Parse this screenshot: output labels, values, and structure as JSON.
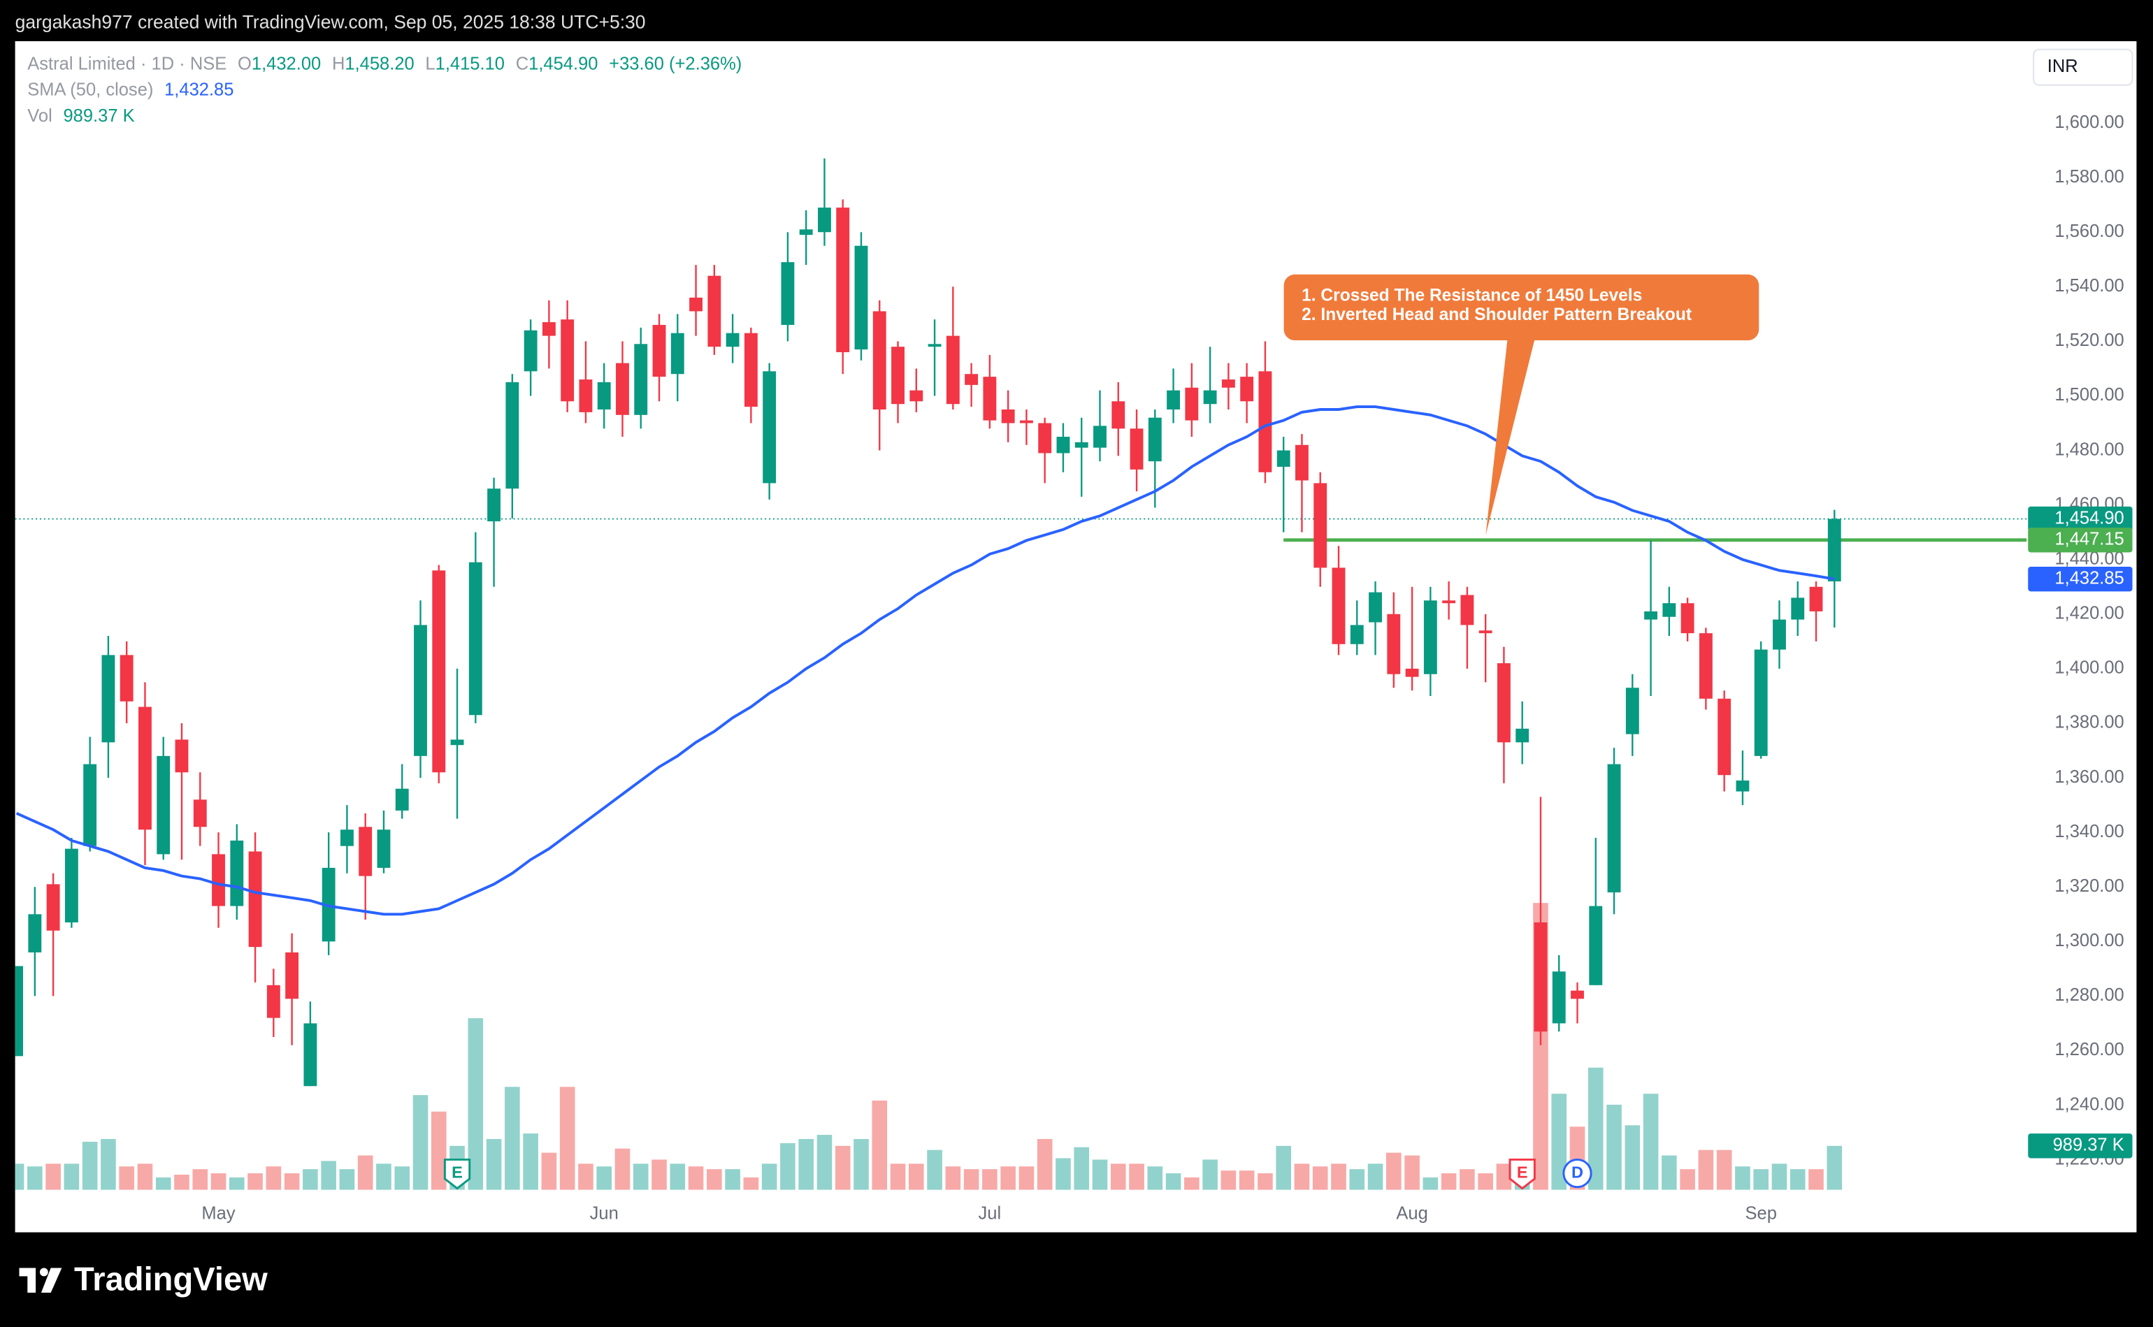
{
  "credit": "gargakash977 created with TradingView.com, Sep 05, 2025 18:38 UTC+5:30",
  "brand": "TradingView",
  "chart_data": {
    "type": "candlestick",
    "currency": "INR",
    "legend": {
      "symbol": "Astral Limited · 1D · NSE",
      "items": [
        {
          "key": "O",
          "value": "1,432.00"
        },
        {
          "key": "H",
          "value": "1,458.20"
        },
        {
          "key": "L",
          "value": "1,415.10"
        },
        {
          "key": "C",
          "value": "1,454.90"
        }
      ],
      "change": "+33.60 (+2.36%)",
      "sma_value": "1,432.85"
    },
    "categories": [
      null,
      null,
      null,
      null,
      null,
      null,
      null,
      null,
      null,
      null,
      null,
      "May",
      null,
      null,
      null,
      null,
      null,
      null,
      null,
      null,
      null,
      null,
      null,
      null,
      null,
      null,
      null,
      null,
      null,
      null,
      null,
      null,
      "Jun",
      null,
      null,
      null,
      null,
      null,
      null,
      null,
      null,
      null,
      null,
      null,
      null,
      null,
      null,
      null,
      null,
      null,
      null,
      null,
      null,
      "Jul",
      null,
      null,
      null,
      null,
      null,
      null,
      null,
      null,
      null,
      null,
      null,
      null,
      null,
      null,
      null,
      null,
      null,
      null,
      null,
      null,
      null,
      null,
      "Aug",
      null,
      null,
      null,
      null,
      null,
      null,
      null,
      null,
      null,
      null,
      null,
      null,
      null,
      null,
      null,
      null,
      null,
      null,
      "Sep",
      null,
      null,
      null,
      null
    ],
    "open": [
      1258,
      1296,
      1321,
      1307,
      1335,
      1373,
      1405,
      1386,
      1332,
      1374,
      1352,
      1332,
      1313,
      1333,
      1284,
      1296,
      1247,
      1300,
      1335,
      1342,
      1327,
      1348,
      1368,
      1436,
      1372,
      1383,
      1454,
      1466,
      1509,
      1527,
      1528,
      1506,
      1495,
      1512,
      1493,
      1526,
      1508,
      1536,
      1544,
      1518,
      1523,
      1468,
      1526,
      1559,
      1560,
      1569,
      1517,
      1531,
      1518,
      1502,
      1518,
      1522,
      1508,
      1507,
      1495,
      1491,
      1490,
      1479,
      1481,
      1481,
      1498,
      1488,
      1476,
      1495,
      1503,
      1497,
      1506,
      1507,
      1509,
      1474,
      1482,
      1468,
      1437,
      1409,
      1417,
      1420,
      1400,
      1398,
      1425,
      1427,
      1414,
      1402,
      1373,
      1307,
      1270,
      1282,
      1284,
      1318,
      1376,
      1418,
      1419,
      1424,
      1413,
      1389,
      1355,
      1368,
      1407,
      1418,
      1430,
      1432
    ],
    "high": [
      1291,
      1320,
      1325,
      1338,
      1375,
      1412,
      1410,
      1395,
      1375,
      1380,
      1362,
      1340,
      1343,
      1340,
      1290,
      1303,
      1278,
      1340,
      1350,
      1347,
      1348,
      1365,
      1425,
      1438,
      1400,
      1450,
      1470,
      1508,
      1528,
      1535,
      1535,
      1520,
      1512,
      1520,
      1525,
      1530,
      1530,
      1548,
      1548,
      1530,
      1525,
      1512,
      1560,
      1568,
      1587,
      1572,
      1560,
      1535,
      1520,
      1510,
      1528,
      1540,
      1512,
      1515,
      1502,
      1495,
      1492,
      1490,
      1492,
      1502,
      1505,
      1495,
      1495,
      1510,
      1512,
      1518,
      1512,
      1512,
      1520,
      1485,
      1486,
      1472,
      1445,
      1425,
      1432,
      1428,
      1430,
      1430,
      1432,
      1430,
      1420,
      1408,
      1388,
      1353,
      1295,
      1285,
      1338,
      1371,
      1398,
      1447,
      1430,
      1426,
      1415,
      1392,
      1370,
      1410,
      1425,
      1432,
      1432,
      1458.2
    ],
    "low": [
      1258,
      1280,
      1280,
      1305,
      1333,
      1360,
      1380,
      1328,
      1330,
      1330,
      1335,
      1305,
      1308,
      1285,
      1265,
      1262,
      1247,
      1295,
      1325,
      1308,
      1325,
      1345,
      1360,
      1358,
      1345,
      1380,
      1430,
      1455,
      1500,
      1510,
      1494,
      1490,
      1488,
      1485,
      1488,
      1498,
      1498,
      1522,
      1515,
      1512,
      1490,
      1462,
      1520,
      1548,
      1555,
      1508,
      1513,
      1480,
      1490,
      1494,
      1500,
      1495,
      1496,
      1488,
      1483,
      1482,
      1468,
      1472,
      1463,
      1476,
      1478,
      1465,
      1459,
      1490,
      1485,
      1490,
      1495,
      1490,
      1468,
      1450,
      1450,
      1430,
      1405,
      1405,
      1405,
      1393,
      1392,
      1390,
      1418,
      1400,
      1395,
      1358,
      1365,
      1262,
      1267,
      1270,
      1284,
      1310,
      1368,
      1390,
      1412,
      1410,
      1385,
      1355,
      1350,
      1367,
      1400,
      1412,
      1410,
      1415.1
    ],
    "close": [
      1291,
      1310,
      1304,
      1334,
      1365,
      1405,
      1388,
      1341,
      1368,
      1362,
      1342,
      1313,
      1337,
      1298,
      1272,
      1279,
      1270,
      1327,
      1341,
      1324,
      1341,
      1356,
      1416,
      1362,
      1374,
      1439,
      1466,
      1505,
      1524,
      1522,
      1498,
      1494,
      1505,
      1493,
      1519,
      1507,
      1523,
      1531,
      1518,
      1523,
      1496,
      1509,
      1549,
      1561,
      1569,
      1516,
      1555,
      1495,
      1497,
      1498,
      1519,
      1497,
      1504,
      1491,
      1490,
      1490,
      1479,
      1485,
      1483,
      1489,
      1488,
      1473,
      1492,
      1502,
      1491,
      1502,
      1503,
      1498,
      1472,
      1480,
      1469,
      1437,
      1409,
      1416,
      1428,
      1398,
      1397,
      1425,
      1424,
      1416,
      1413,
      1373,
      1378,
      1267,
      1289,
      1279,
      1313,
      1365,
      1393,
      1421,
      1424,
      1413,
      1389,
      1361,
      1359,
      1407,
      1418,
      1426,
      1421,
      1454.9
    ],
    "up_color": "#089981",
    "down_color": "#f23645",
    "volume": {
      "name": "Vol",
      "last_label": "989.37 K",
      "up_color": "#92d2cc",
      "down_color": "#f7a9a7",
      "values": [
        587,
        526,
        587,
        587,
        1082,
        1144,
        526,
        587,
        278,
        340,
        464,
        371,
        278,
        371,
        526,
        371,
        464,
        649,
        464,
        773,
        587,
        526,
        2133,
        1762,
        989,
        3865,
        1144,
        2319,
        1268,
        835,
        2319,
        587,
        526,
        928,
        587,
        680,
        587,
        526,
        464,
        464,
        278,
        587,
        1051,
        1144,
        1237,
        989,
        1144,
        2010,
        587,
        587,
        897,
        526,
        464,
        464,
        526,
        526,
        1144,
        711,
        959,
        680,
        587,
        587,
        526,
        371,
        278,
        680,
        433,
        433,
        371,
        989,
        587,
        526,
        587,
        464,
        587,
        835,
        773,
        278,
        371,
        464,
        371,
        587,
        680,
        6462,
        2164,
        1422,
        2752,
        1917,
        1453,
        2164,
        773,
        464,
        897,
        897,
        526,
        464,
        587,
        464,
        464,
        989.37
      ]
    },
    "sma": {
      "name": "SMA (50, close)",
      "color": "#2962ff",
      "values": [
        1347,
        1344,
        1341,
        1337,
        1335,
        1333,
        1330,
        1327,
        1326,
        1324,
        1323,
        1321,
        1320,
        1318,
        1317,
        1316,
        1315,
        1313,
        1312,
        1311,
        1310,
        1310,
        1311,
        1312,
        1315,
        1318,
        1321,
        1325,
        1330,
        1334,
        1339,
        1344,
        1349,
        1354,
        1359,
        1364,
        1368,
        1373,
        1377,
        1382,
        1386,
        1391,
        1395,
        1400,
        1404,
        1409,
        1413,
        1418,
        1422,
        1427,
        1431,
        1435,
        1438,
        1442,
        1444,
        1447,
        1449,
        1451,
        1454,
        1456,
        1459,
        1462,
        1465,
        1469,
        1474,
        1478,
        1482,
        1485,
        1489,
        1491,
        1494,
        1495,
        1495,
        1496,
        1496,
        1495,
        1494,
        1493,
        1491,
        1489,
        1486,
        1482,
        1478,
        1476,
        1472,
        1467,
        1463,
        1461,
        1458,
        1456,
        1454,
        1450,
        1447,
        1443,
        1440,
        1438,
        1436,
        1435,
        1434,
        1432.85
      ]
    },
    "resistance": {
      "value": 1447.15,
      "color": "#4caf50"
    },
    "price_badges": [
      {
        "value": 1454.9,
        "label": "1,454.90",
        "color": "#089981"
      },
      {
        "value": 1447.15,
        "label": "1,447.15",
        "color": "#4caf50"
      },
      {
        "value": 1432.85,
        "label": "1,432.85",
        "color": "#2962ff"
      }
    ],
    "events": [
      {
        "label": "E",
        "index": 24,
        "color": "#089981"
      },
      {
        "label": "E",
        "index": 82,
        "color": "#f23645"
      },
      {
        "label": "D",
        "index": 85,
        "color": "#2962ff"
      }
    ],
    "annotation": {
      "lines": [
        "1. Crossed The Resistance of 1450 Levels",
        "2. Inverted Head and Shoulder Pattern Breakout"
      ],
      "color": "#f07a3a"
    },
    "ylim": [
      1209,
      1630
    ],
    "yticks": [
      {
        "value": 1220,
        "label": "1,220.00"
      },
      {
        "value": 1240,
        "label": "1,240.00"
      },
      {
        "value": 1260,
        "label": "1,260.00"
      },
      {
        "value": 1280,
        "label": "1,280.00"
      },
      {
        "value": 1300,
        "label": "1,300.00"
      },
      {
        "value": 1320,
        "label": "1,320.00"
      },
      {
        "value": 1340,
        "label": "1,340.00"
      },
      {
        "value": 1360,
        "label": "1,360.00"
      },
      {
        "value": 1380,
        "label": "1,380.00"
      },
      {
        "value": 1400,
        "label": "1,400.00"
      },
      {
        "value": 1420,
        "label": "1,420.00"
      },
      {
        "value": 1440,
        "label": "1,440.00"
      },
      {
        "value": 1460,
        "label": "1,460.00"
      },
      {
        "value": 1480,
        "label": "1,480.00"
      },
      {
        "value": 1500,
        "label": "1,500.00"
      },
      {
        "value": 1520,
        "label": "1,520.00"
      },
      {
        "value": 1540,
        "label": "1,540.00"
      },
      {
        "value": 1560,
        "label": "1,560.00"
      },
      {
        "value": 1580,
        "label": "1,580.00"
      },
      {
        "value": 1600,
        "label": "1,600.00"
      }
    ],
    "grid": false
  }
}
